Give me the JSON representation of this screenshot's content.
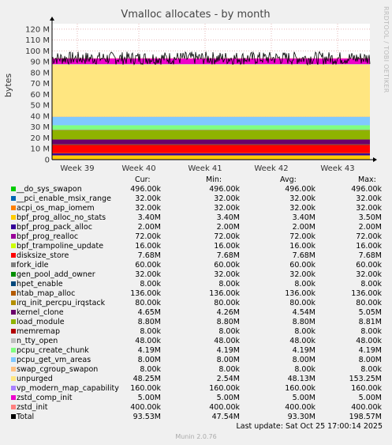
{
  "side_text": "RRDTOOL / TOBI OETIKER",
  "footer": "Munin 2.0.76",
  "last_update": "Last update: Sat Oct 25 17:00:14 2025",
  "columns": [
    "Cur:",
    "Min:",
    "Avg:",
    "Max:"
  ],
  "chart_data": {
    "type": "area",
    "title": "Vmalloc allocates - by month",
    "ylabel": "bytes",
    "ylim": [
      0,
      125
    ],
    "yticks": [
      "0",
      "10 M",
      "20 M",
      "30 M",
      "40 M",
      "50 M",
      "60 M",
      "70 M",
      "80 M",
      "90 M",
      "100 M",
      "110 M",
      "120 M"
    ],
    "xticks": [
      "Week 39",
      "Week 40",
      "Week 41",
      "Week 42",
      "Week 43"
    ],
    "grid": true,
    "series": [
      {
        "name": "__do_sys_swapon",
        "color": "#00cc00",
        "cur": "496.00k",
        "min": "496.00k",
        "avg": "496.00k",
        "max": "496.00k"
      },
      {
        "name": "__pci_enable_msix_range",
        "color": "#0066b3",
        "cur": "32.00k",
        "min": "32.00k",
        "avg": "32.00k",
        "max": "32.00k"
      },
      {
        "name": "acpi_os_map_iomem",
        "color": "#ff8000",
        "cur": "32.00k",
        "min": "32.00k",
        "avg": "32.00k",
        "max": "32.00k"
      },
      {
        "name": "bpf_prog_alloc_no_stats",
        "color": "#ffcc00",
        "cur": "3.40M",
        "min": "3.40M",
        "avg": "3.40M",
        "max": "3.50M"
      },
      {
        "name": "bpf_prog_pack_alloc",
        "color": "#330099",
        "cur": "2.00M",
        "min": "2.00M",
        "avg": "2.00M",
        "max": "2.00M"
      },
      {
        "name": "bpf_prog_realloc",
        "color": "#990099",
        "cur": "72.00k",
        "min": "72.00k",
        "avg": "72.00k",
        "max": "72.00k"
      },
      {
        "name": "bpf_trampoline_update",
        "color": "#ccff00",
        "cur": "16.00k",
        "min": "16.00k",
        "avg": "16.00k",
        "max": "16.00k"
      },
      {
        "name": "disksize_store",
        "color": "#ff0000",
        "cur": "7.68M",
        "min": "7.68M",
        "avg": "7.68M",
        "max": "7.68M"
      },
      {
        "name": "fork_idle",
        "color": "#808080",
        "cur": "60.00k",
        "min": "60.00k",
        "avg": "60.00k",
        "max": "60.00k"
      },
      {
        "name": "gen_pool_add_owner",
        "color": "#008f00",
        "cur": "32.00k",
        "min": "32.00k",
        "avg": "32.00k",
        "max": "32.00k"
      },
      {
        "name": "hpet_enable",
        "color": "#00487d",
        "cur": "8.00k",
        "min": "8.00k",
        "avg": "8.00k",
        "max": "8.00k"
      },
      {
        "name": "htab_map_alloc",
        "color": "#b35a00",
        "cur": "136.00k",
        "min": "136.00k",
        "avg": "136.00k",
        "max": "136.00k"
      },
      {
        "name": "irq_init_percpu_irqstack",
        "color": "#b38f00",
        "cur": "80.00k",
        "min": "80.00k",
        "avg": "80.00k",
        "max": "80.00k"
      },
      {
        "name": "kernel_clone",
        "color": "#6b006b",
        "cur": "4.65M",
        "min": "4.26M",
        "avg": "4.54M",
        "max": "5.05M"
      },
      {
        "name": "load_module",
        "color": "#8fb300",
        "cur": "8.80M",
        "min": "8.80M",
        "avg": "8.80M",
        "max": "8.81M"
      },
      {
        "name": "memremap",
        "color": "#b30000",
        "cur": "8.00k",
        "min": "8.00k",
        "avg": "8.00k",
        "max": "8.00k"
      },
      {
        "name": "n_tty_open",
        "color": "#bebebe",
        "cur": "48.00k",
        "min": "48.00k",
        "avg": "48.00k",
        "max": "48.00k"
      },
      {
        "name": "pcpu_create_chunk",
        "color": "#80ff80",
        "cur": "4.19M",
        "min": "4.19M",
        "avg": "4.19M",
        "max": "4.19M"
      },
      {
        "name": "pcpu_get_vm_areas",
        "color": "#80c9ff",
        "cur": "8.00M",
        "min": "8.00M",
        "avg": "8.00M",
        "max": "8.00M"
      },
      {
        "name": "swap_cgroup_swapon",
        "color": "#ffc080",
        "cur": "8.00k",
        "min": "8.00k",
        "avg": "8.00k",
        "max": "8.00k"
      },
      {
        "name": "unpurged",
        "color": "#ffe680",
        "cur": "48.25M",
        "min": "2.54M",
        "avg": "48.13M",
        "max": "153.25M"
      },
      {
        "name": "vp_modern_map_capability",
        "color": "#aa80ff",
        "cur": "160.00k",
        "min": "160.00k",
        "avg": "160.00k",
        "max": "160.00k"
      },
      {
        "name": "zstd_comp_init",
        "color": "#ee00cc",
        "cur": "5.00M",
        "min": "5.00M",
        "avg": "5.00M",
        "max": "5.00M"
      },
      {
        "name": "zstd_init",
        "color": "#ff8080",
        "cur": "400.00k",
        "min": "400.00k",
        "avg": "400.00k",
        "max": "400.00k"
      },
      {
        "name": "Total",
        "color": "#000000",
        "cur": "93.53M",
        "min": "47.54M",
        "avg": "93.30M",
        "max": "198.57M"
      }
    ]
  }
}
